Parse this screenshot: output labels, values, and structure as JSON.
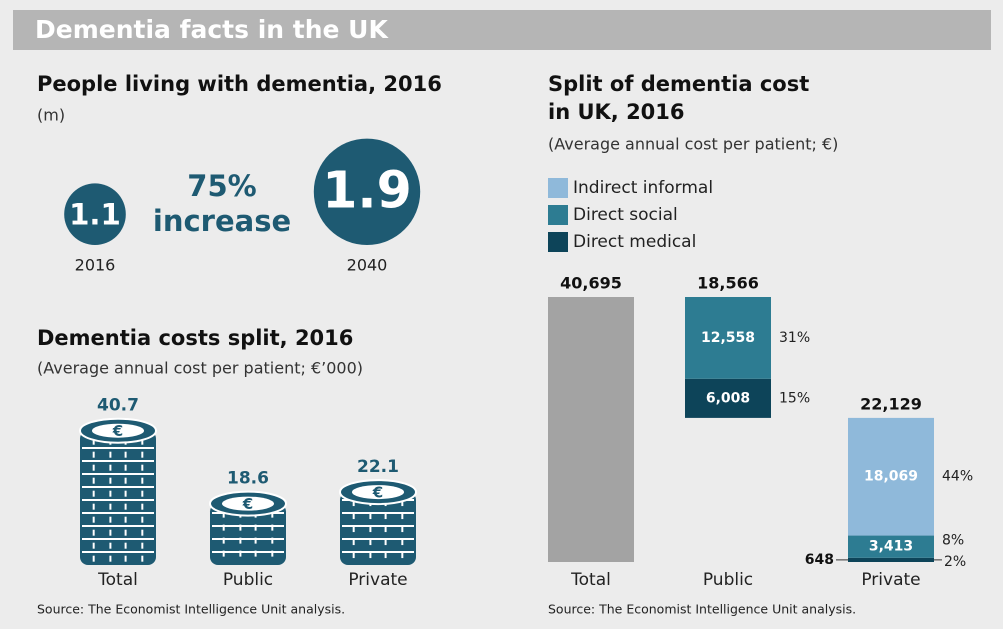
{
  "header": {
    "title": "Dementia facts in the UK"
  },
  "people": {
    "title": "People living with dementia, 2016",
    "unit": "(m)",
    "bubbles": [
      {
        "value": 1.1,
        "year": "2016"
      },
      {
        "value": 1.9,
        "year": "2040"
      }
    ],
    "increase": {
      "figure": "75%",
      "word": "increase"
    }
  },
  "costs_split": {
    "type": "coin-stacks",
    "title": "Dementia costs split, 2016",
    "subtitle": "(Average annual cost per patient; €’000)",
    "categories": [
      "Total",
      "Public",
      "Private"
    ],
    "values": [
      40.7,
      18.6,
      22.1
    ],
    "color": "#1e5a72"
  },
  "chart_data": {
    "type": "waterfall",
    "title_lines": [
      "Split of dementia cost",
      "in UK, 2016"
    ],
    "subtitle": "(Average annual cost per patient; €)",
    "categories": [
      "Total",
      "Public",
      "Private"
    ],
    "totals": [
      40695,
      18566,
      22129
    ],
    "total_labels": [
      "40,695",
      "18,566",
      "22,129"
    ],
    "total_color": "#a3a3a3",
    "series": [
      {
        "name": "Indirect informal",
        "color": "#8fb9da",
        "values": [
          null,
          null,
          18069
        ],
        "value_labels": [
          null,
          null,
          "18,069"
        ],
        "share_labels": [
          null,
          null,
          "44%"
        ]
      },
      {
        "name": "Direct social",
        "color": "#2d7c92",
        "values": [
          null,
          12558,
          3413
        ],
        "value_labels": [
          null,
          "12,558",
          "3,413"
        ],
        "share_labels": [
          null,
          "31%",
          "8%"
        ]
      },
      {
        "name": "Direct medical",
        "color": "#0d4459",
        "values": [
          null,
          6008,
          648
        ],
        "value_labels": [
          null,
          "6,008",
          "648"
        ],
        "share_labels": [
          null,
          "15%",
          "2%"
        ]
      }
    ]
  },
  "sources": [
    "Source: The Economist Intelligence Unit analysis.",
    "Source: The Economist Intelligence Unit analysis."
  ]
}
